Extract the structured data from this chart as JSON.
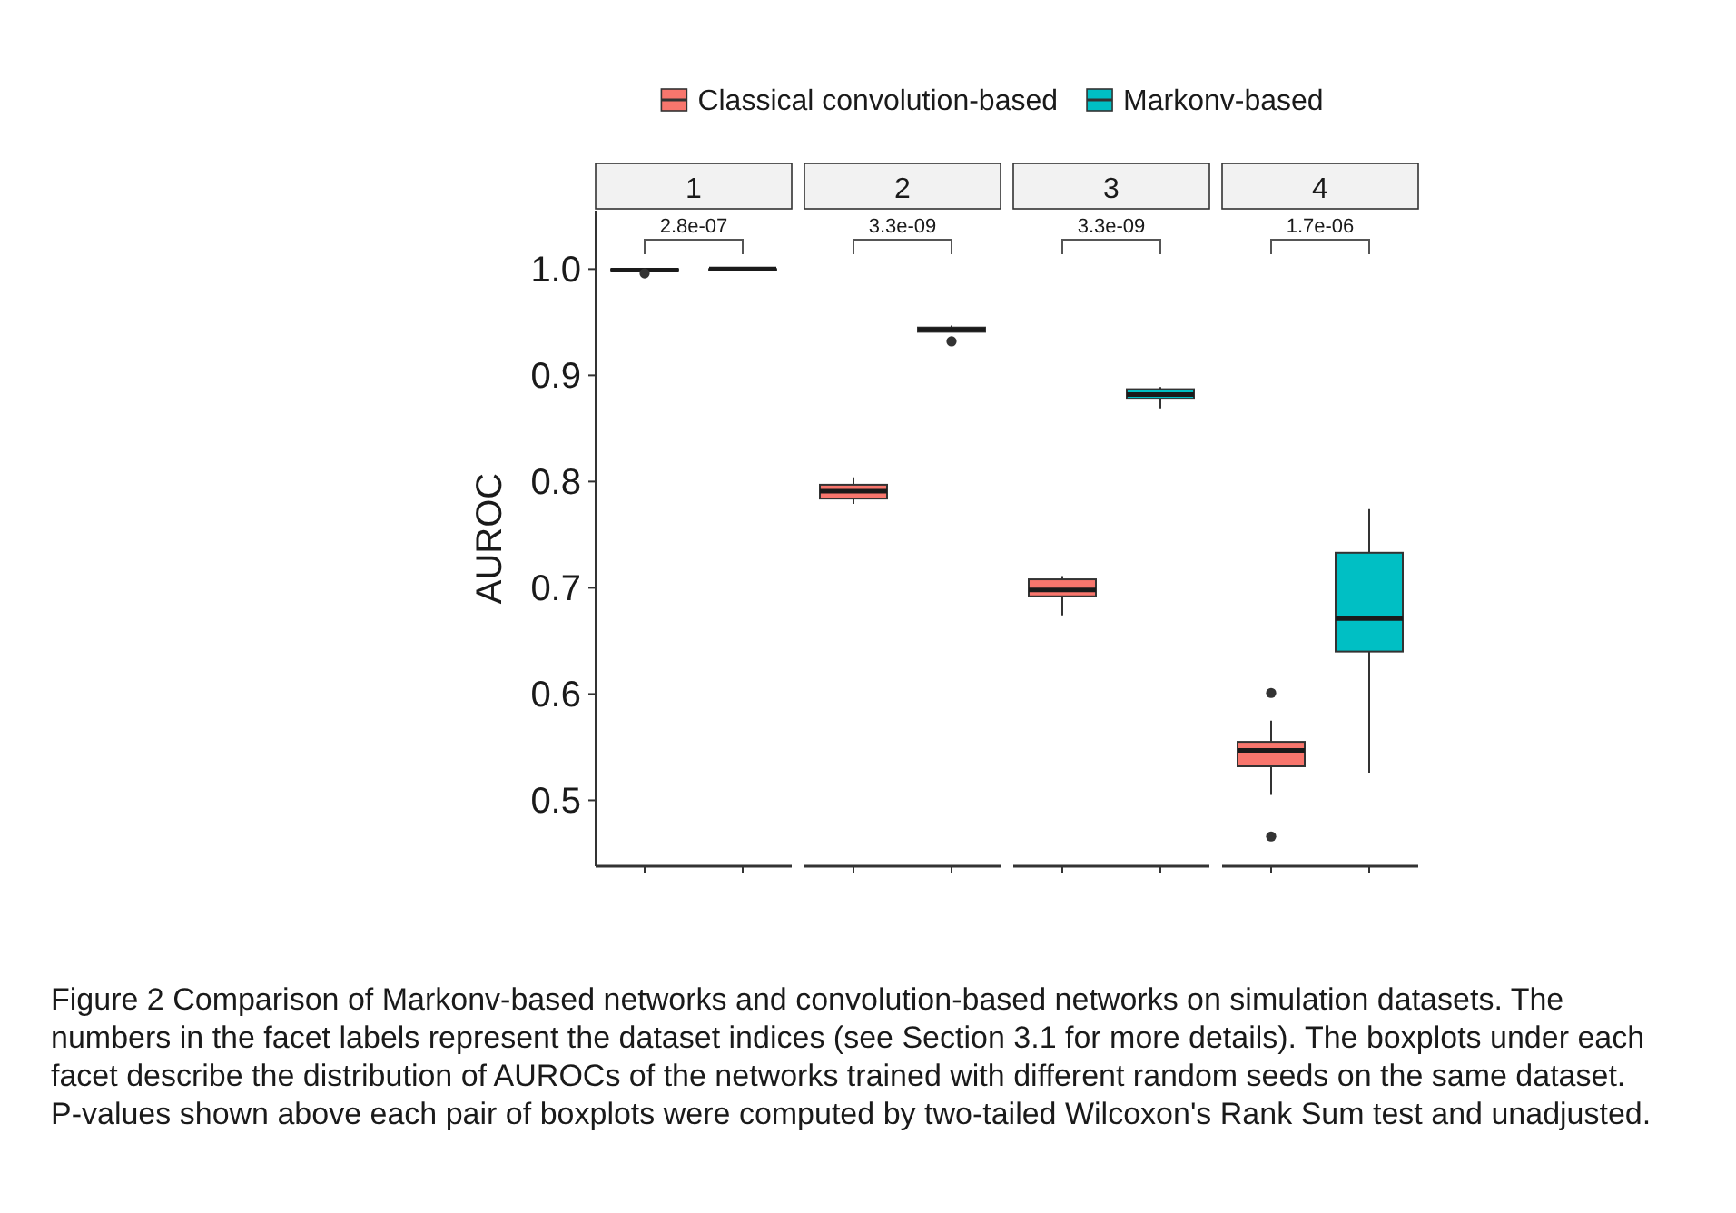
{
  "chart_data": {
    "type": "box",
    "categories": [
      "1",
      "2",
      "3",
      "4"
    ],
    "ylabel": "AUROC",
    "ylim": [
      0.438,
      1.055
    ],
    "yticks": [
      0.5,
      0.6,
      0.7,
      0.8,
      0.9,
      {
        "value": 1,
        "label": "1.0"
      }
    ],
    "legend": "top",
    "grid": false,
    "series": [
      {
        "name": "Classical convolution-based",
        "color": "#f8766d",
        "boxes": [
          {
            "low": 0.997,
            "q1": 0.998,
            "median": 0.999,
            "q3": 1.0,
            "high": 1.0,
            "outliers": [
              0.996
            ]
          },
          {
            "low": 0.779,
            "q1": 0.784,
            "median": 0.791,
            "q3": 0.797,
            "high": 0.804
          },
          {
            "low": 0.674,
            "q1": 0.692,
            "median": 0.698,
            "q3": 0.708,
            "high": 0.711
          },
          {
            "low": 0.505,
            "q1": 0.532,
            "median": 0.547,
            "q3": 0.555,
            "high": 0.575,
            "outliers": [
              0.601,
              0.466
            ]
          }
        ]
      },
      {
        "name": "Markonv-based",
        "color": "#00bfc4",
        "boxes": [
          {
            "low": 0.9995,
            "q1": 0.9995,
            "median": 1.0,
            "q3": 1.0,
            "high": 1.0
          },
          {
            "low": 0.941,
            "q1": 0.941,
            "median": 0.943,
            "q3": 0.945,
            "high": 0.947,
            "outliers": [
              0.932
            ]
          },
          {
            "low": 0.869,
            "q1": 0.878,
            "median": 0.882,
            "q3": 0.887,
            "high": 0.889
          },
          {
            "low": 0.526,
            "q1": 0.64,
            "median": 0.671,
            "q3": 0.733,
            "high": 0.774
          }
        ]
      }
    ],
    "annotations": [
      "2.8e-07",
      "3.3e-09",
      "3.3e-09",
      "1.7e-06",
      "Figure 2 Comparison of Markonv-based networks and convolution-based networks on simulation datasets. The numbers in the facet labels represent the dataset indices (see Section 3.1 for more details). The boxplots under each facet describe the distribution of AUROCs of the networks trained with different random seeds on the same dataset. P-values shown above each pair of boxplots were computed by two-tailed Wilcoxon's Rank Sum test and unadjusted."
    ]
  }
}
